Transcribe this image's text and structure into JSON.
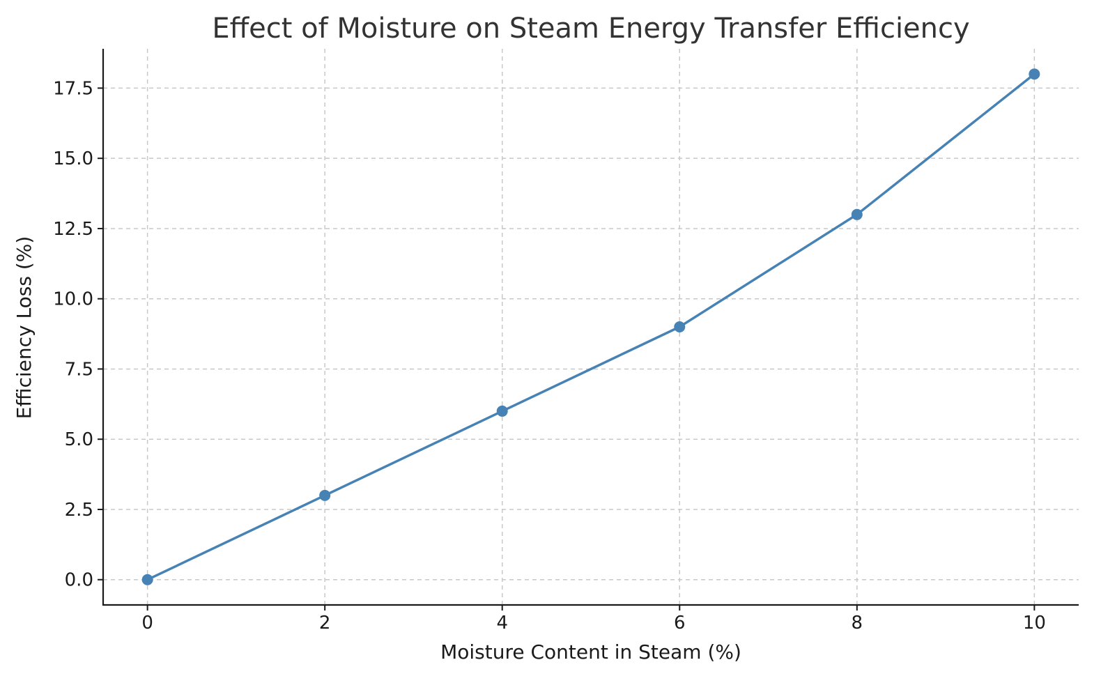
{
  "chart_data": {
    "type": "line",
    "title": "Effect of Moisture on Steam Energy Transfer Efficiency",
    "xlabel": "Moisture Content in Steam (%)",
    "ylabel": "Efficiency Loss (%)",
    "xlim": [
      -0.5,
      10.5
    ],
    "ylim": [
      -0.9,
      18.9
    ],
    "x_ticks": [
      0,
      2,
      4,
      6,
      8,
      10
    ],
    "y_ticks": [
      0.0,
      2.5,
      5.0,
      7.5,
      10.0,
      12.5,
      15.0,
      17.5
    ],
    "x_tick_labels": [
      "0",
      "2",
      "4",
      "6",
      "8",
      "10"
    ],
    "y_tick_labels": [
      "0.0",
      "2.5",
      "5.0",
      "7.5",
      "10.0",
      "12.5",
      "15.0",
      "17.5"
    ],
    "grid": true,
    "series": [
      {
        "x": [
          0,
          2,
          4,
          6,
          8,
          10
        ],
        "y": [
          0,
          3,
          6,
          9,
          13,
          18
        ],
        "color": "#4682b4",
        "marker": "circle"
      }
    ]
  }
}
